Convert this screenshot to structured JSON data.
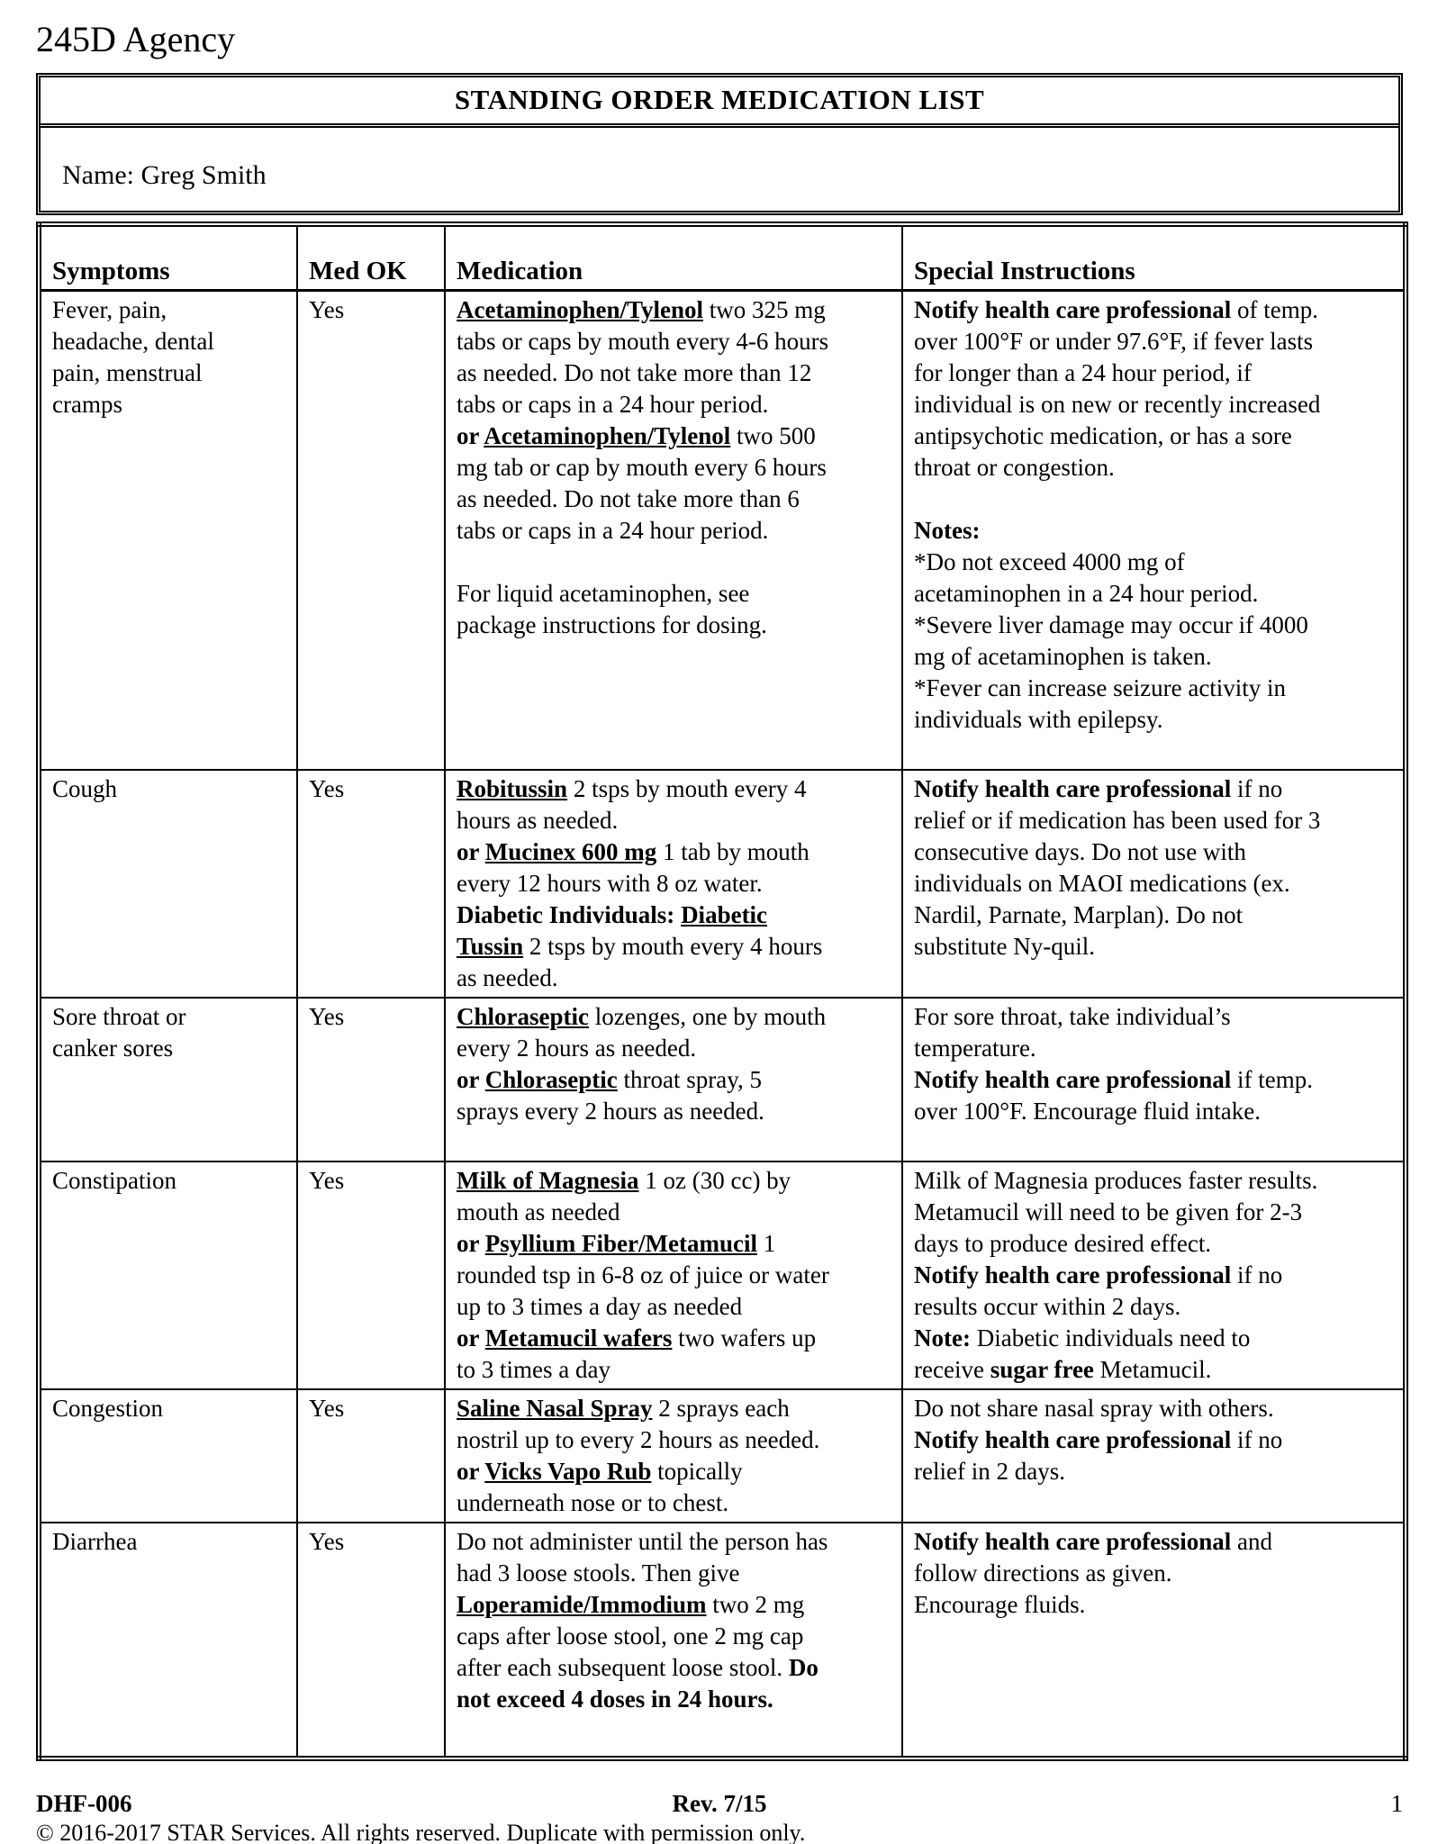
{
  "page": {
    "agency": "245D Agency",
    "title": "STANDING ORDER MEDICATION LIST",
    "name_label": "Name: Greg Smith"
  },
  "table": {
    "headers": {
      "symptoms": "Symptoms",
      "med_ok": "Med OK",
      "medication": "Medication",
      "special": "Special Instructions"
    },
    "rows": [
      {
        "symptoms": "Fever, pain,\nheadache, dental\npain, menstrual\ncramps",
        "med_ok": "Yes",
        "medication": [
          {
            "t": "Acetaminophen/Tylenol",
            "b": true,
            "u": true
          },
          {
            "t": " two 325 mg\ntabs or caps by mouth every 4-6 hours\nas needed. Do not take more than 12\ntabs or caps in a 24 hour period.\n"
          },
          {
            "t": "or ",
            "b": true
          },
          {
            "t": "Acetaminophen/Tylenol",
            "b": true,
            "u": true
          },
          {
            "t": " two 500\nmg tab or cap by mouth every 6 hours\nas needed. Do not take more than 6\ntabs or caps in a 24 hour period.\n\nFor liquid acetaminophen, see\npackage instructions for dosing."
          }
        ],
        "special": [
          {
            "t": "Notify health care professional",
            "b": true
          },
          {
            "t": " of temp.\nover 100°F or under 97.6°F, if fever lasts\nfor longer than a 24 hour period, if\nindividual is on new or recently increased\nantipsychotic medication, or has a sore\nthroat or congestion.\n\n"
          },
          {
            "t": "Notes:",
            "b": true
          },
          {
            "t": "\n*Do not exceed 4000 mg of\nacetaminophen in a 24 hour period.\n*Severe liver damage may occur if 4000\nmg of acetaminophen is taken.\n*Fever can increase seizure activity in\nindividuals with epilepsy."
          }
        ]
      },
      {
        "symptoms": "Cough",
        "med_ok": "Yes",
        "medication": [
          {
            "t": "Robitussin",
            "b": true,
            "u": true
          },
          {
            "t": " 2 tsps by mouth every 4\nhours as needed.\n"
          },
          {
            "t": "or ",
            "b": true
          },
          {
            "t": "Mucinex 600 mg",
            "b": true,
            "u": true
          },
          {
            "t": " 1 tab by mouth\nevery 12 hours with 8 oz water.\n"
          },
          {
            "t": "Diabetic Individuals:  ",
            "b": true
          },
          {
            "t": "Diabetic\nTussin",
            "b": true,
            "u": true
          },
          {
            "t": " 2 tsps by mouth every 4 hours\nas needed."
          }
        ],
        "special": [
          {
            "t": "Notify health care professional",
            "b": true
          },
          {
            "t": " if no\nrelief or if medication has been used for 3\nconsecutive days. Do not use with\nindividuals on MAOI medications (ex.\nNardil, Parnate, Marplan).  Do not\nsubstitute Ny-quil."
          }
        ]
      },
      {
        "symptoms": "Sore throat or\ncanker sores",
        "med_ok": "Yes",
        "medication": [
          {
            "t": "Chloraseptic",
            "b": true,
            "u": true
          },
          {
            "t": " lozenges, one by mouth\nevery 2 hours as needed.\n"
          },
          {
            "t": "or ",
            "b": true
          },
          {
            "t": "Chloraseptic",
            "b": true,
            "u": true
          },
          {
            "t": " throat spray, 5\nsprays every 2 hours as needed."
          }
        ],
        "special": [
          {
            "t": "For sore throat, take individual’s\ntemperature.\n"
          },
          {
            "t": "Notify health care professional",
            "b": true
          },
          {
            "t": " if temp.\nover 100°F. Encourage fluid intake."
          }
        ]
      },
      {
        "symptoms": "Constipation",
        "med_ok": "Yes",
        "medication": [
          {
            "t": "Milk of Magnesia",
            "b": true,
            "u": true
          },
          {
            "t": " 1 oz (30 cc) by\nmouth as needed\n"
          },
          {
            "t": "or ",
            "b": true
          },
          {
            "t": "Psyllium Fiber/Metamucil",
            "b": true,
            "u": true
          },
          {
            "t": " 1\nrounded tsp in 6-8 oz of juice or water\nup to 3 times a day as needed\n"
          },
          {
            "t": "or ",
            "b": true
          },
          {
            "t": "Metamucil wafers",
            "b": true,
            "u": true
          },
          {
            "t": " two wafers up\nto 3 times a day"
          }
        ],
        "special": [
          {
            "t": "Milk of Magnesia produces faster results.\nMetamucil will need to be given for 2-3\ndays to produce desired effect.\n"
          },
          {
            "t": "Notify health care professional",
            "b": true
          },
          {
            "t": " if no\nresults occur within 2 days.\n"
          },
          {
            "t": "Note:",
            "b": true
          },
          {
            "t": "  Diabetic individuals need to\nreceive "
          },
          {
            "t": "sugar free",
            "b": true
          },
          {
            "t": " Metamucil."
          }
        ]
      },
      {
        "symptoms": "Congestion",
        "med_ok": "Yes",
        "medication": [
          {
            "t": "Saline Nasal Spray",
            "b": true,
            "u": true
          },
          {
            "t": " 2 sprays each\nnostril up to every 2 hours as needed.\n"
          },
          {
            "t": "or ",
            "b": true
          },
          {
            "t": "Vicks Vapo Rub",
            "b": true,
            "u": true
          },
          {
            "t": " topically\nunderneath nose or to chest."
          }
        ],
        "special": [
          {
            "t": "Do not share nasal spray with others.\n"
          },
          {
            "t": "Notify health care professional",
            "b": true
          },
          {
            "t": " if no\nrelief in 2 days."
          }
        ]
      },
      {
        "symptoms": "Diarrhea",
        "med_ok": "Yes",
        "medication": [
          {
            "t": "Do not administer until the person has\nhad 3 loose stools.  Then give\n"
          },
          {
            "t": "Loperamide/Immodium",
            "b": true,
            "u": true
          },
          {
            "t": " two 2 mg\ncaps after loose stool, one 2 mg cap\nafter each subsequent loose stool.  "
          },
          {
            "t": "Do\nnot exceed 4 doses in 24 hours.",
            "b": true
          }
        ],
        "special": [
          {
            "t": "Notify health care professional",
            "b": true
          },
          {
            "t": " and\nfollow directions as given.\nEncourage fluids."
          }
        ]
      }
    ]
  },
  "footer": {
    "form_number": "DHF-006",
    "revision": "Rev. 7/15",
    "page_number": "1",
    "copyright": "© 2016-2017 STAR Services. All rights reserved.  Duplicate with permission only."
  }
}
